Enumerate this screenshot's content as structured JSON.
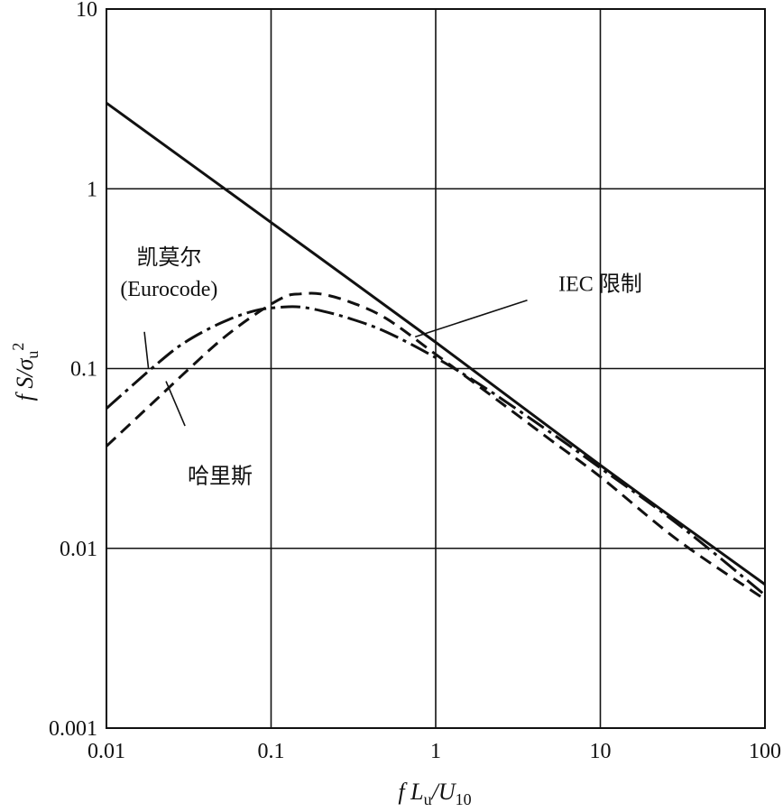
{
  "chart_data": {
    "type": "line",
    "x_scale": "log",
    "y_scale": "log",
    "xlim": [
      0.01,
      100
    ],
    "ylim": [
      0.001,
      10
    ],
    "grid": true,
    "legend": "none",
    "xlabel": "f L_u / U_10",
    "ylabel": "f S / σ_u^2",
    "x_ticks": [
      {
        "value": 0.01,
        "label": "0.01"
      },
      {
        "value": 0.1,
        "label": "0.1"
      },
      {
        "value": 1,
        "label": "1"
      },
      {
        "value": 10,
        "label": "10"
      },
      {
        "value": 100,
        "label": "100"
      }
    ],
    "y_ticks": [
      {
        "value": 0.001,
        "label": "0.001"
      },
      {
        "value": 0.01,
        "label": "0.01"
      },
      {
        "value": 0.1,
        "label": "0.1"
      },
      {
        "value": 1,
        "label": "1"
      },
      {
        "value": 10,
        "label": "10"
      }
    ],
    "series": [
      {
        "style": "solid",
        "x": [
          0.01,
          0.1,
          1,
          10,
          100
        ],
        "y": [
          3.0,
          0.65,
          0.14,
          0.029,
          0.0063
        ]
      },
      {
        "style": "dashdot",
        "x": [
          0.01,
          0.02,
          0.03,
          0.05,
          0.08,
          0.12,
          0.15,
          0.2,
          0.3,
          0.5,
          1,
          2,
          5,
          10,
          30,
          100
        ],
        "y": [
          0.06,
          0.105,
          0.14,
          0.18,
          0.21,
          0.22,
          0.22,
          0.21,
          0.19,
          0.16,
          0.115,
          0.078,
          0.044,
          0.028,
          0.0135,
          0.0055
        ]
      },
      {
        "style": "dashed",
        "x": [
          0.01,
          0.02,
          0.03,
          0.05,
          0.08,
          0.12,
          0.15,
          0.2,
          0.3,
          0.5,
          1,
          2,
          5,
          10,
          30,
          100
        ],
        "y": [
          0.037,
          0.067,
          0.095,
          0.145,
          0.2,
          0.25,
          0.26,
          0.26,
          0.235,
          0.19,
          0.12,
          0.075,
          0.04,
          0.025,
          0.011,
          0.0052
        ]
      }
    ],
    "annotations": [
      {
        "lines": [
          "凯莫尔",
          "(Eurocode)"
        ],
        "pos": {
          "x": 0.024,
          "y": 0.38
        },
        "pointer": {
          "x1": 0.017,
          "y1": 0.16,
          "x2": 0.018,
          "y2": 0.1
        }
      },
      {
        "lines": [
          "IEC 限制"
        ],
        "pos": {
          "x": 10,
          "y": 0.27
        },
        "pointer": {
          "x1": 3.6,
          "y1": 0.24,
          "x2": 0.75,
          "y2": 0.15
        }
      },
      {
        "lines": [
          "哈里斯"
        ],
        "pos": {
          "x": 0.049,
          "y": 0.023
        },
        "pointer": {
          "x1": 0.03,
          "y1": 0.048,
          "x2": 0.023,
          "y2": 0.085
        }
      }
    ]
  }
}
